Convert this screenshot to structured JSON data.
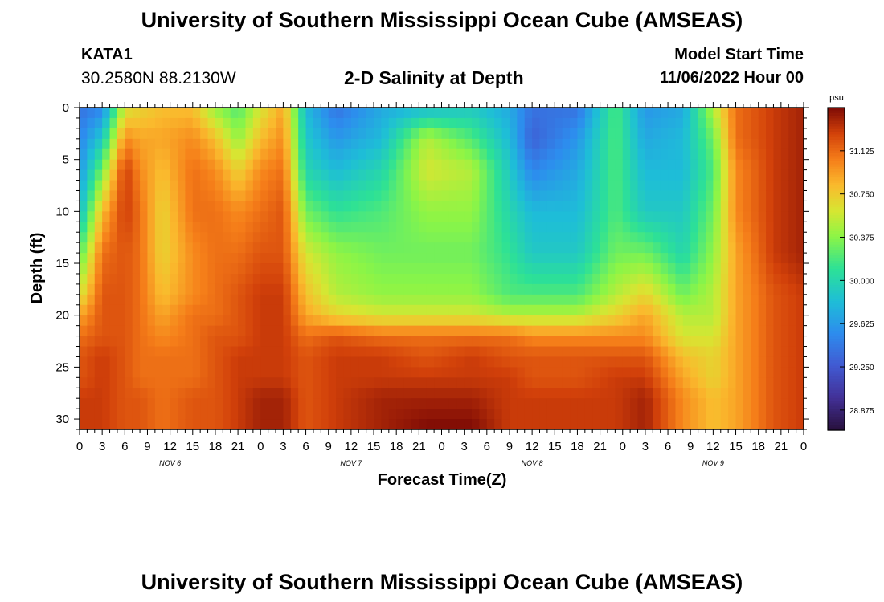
{
  "header": {
    "title": "University of Southern Mississippi Ocean Cube (AMSEAS)",
    "station": "KATA1",
    "coords": "30.2580N  88.2130W",
    "subtitle": "2-D Salinity at Depth",
    "start_label": "Model Start Time",
    "start_value": "11/06/2022 Hour 00"
  },
  "footer": {
    "title": "University of Southern Mississippi Ocean Cube (AMSEAS)"
  },
  "chart_data": {
    "type": "heatmap",
    "title": "2-D Salinity at Depth",
    "xlabel": "Forecast Time(Z)",
    "ylabel": "Depth (ft)",
    "x_hours_range": [
      0,
      96
    ],
    "y_range": [
      0,
      31
    ],
    "x_tick_labels": [
      "0",
      "3",
      "6",
      "9",
      "12",
      "15",
      "18",
      "21",
      "0",
      "3",
      "6",
      "9",
      "12",
      "15",
      "18",
      "21",
      "0",
      "3",
      "6",
      "9",
      "12",
      "15",
      "18",
      "21",
      "0",
      "3",
      "6",
      "9",
      "12",
      "15",
      "18",
      "21",
      "0"
    ],
    "day_labels": [
      {
        "label": "NOV  6",
        "hour": 12
      },
      {
        "label": "NOV  7",
        "hour": 36
      },
      {
        "label": "NOV  8",
        "hour": 60
      },
      {
        "label": "NOV  9",
        "hour": 84
      }
    ],
    "y_ticks": [
      0,
      5,
      10,
      15,
      20,
      25,
      30
    ],
    "colorbar": {
      "unit": "psu",
      "range": [
        28.7,
        31.5
      ],
      "ticks": [
        "31.125",
        "30.750",
        "30.375",
        "30.000",
        "29.625",
        "29.250",
        "28.875"
      ]
    },
    "depth_levels_ft": [
      0,
      3,
      6,
      10,
      14,
      18,
      20,
      22,
      24,
      26,
      28,
      31
    ],
    "profiles": [
      {
        "hour": 0,
        "values": [
          29.4,
          29.5,
          29.6,
          29.8,
          30.2,
          30.6,
          30.9,
          31.1,
          31.2,
          31.2,
          31.3,
          31.3
        ]
      },
      {
        "hour": 3,
        "values": [
          29.5,
          29.9,
          30.3,
          30.8,
          31.1,
          31.2,
          31.2,
          31.2,
          31.3,
          31.3,
          31.3,
          31.3
        ]
      },
      {
        "hour": 6,
        "values": [
          30.6,
          31.0,
          31.3,
          31.3,
          31.2,
          31.2,
          31.2,
          31.2,
          31.2,
          31.2,
          31.2,
          31.2
        ]
      },
      {
        "hour": 8,
        "values": [
          30.7,
          30.9,
          31.0,
          31.1,
          31.1,
          31.1,
          31.1,
          31.1,
          31.1,
          31.1,
          31.2,
          31.2
        ]
      },
      {
        "hour": 11,
        "values": [
          30.8,
          30.9,
          30.8,
          30.7,
          30.7,
          30.8,
          30.9,
          31.0,
          31.1,
          31.1,
          31.1,
          31.1
        ]
      },
      {
        "hour": 15,
        "values": [
          30.8,
          31.0,
          31.1,
          31.1,
          31.0,
          31.0,
          31.1,
          31.1,
          31.1,
          31.1,
          31.2,
          31.2
        ]
      },
      {
        "hour": 18,
        "values": [
          30.4,
          30.8,
          31.0,
          31.1,
          31.1,
          31.1,
          31.1,
          31.2,
          31.2,
          31.2,
          31.2,
          31.2
        ]
      },
      {
        "hour": 21,
        "values": [
          30.2,
          30.4,
          30.7,
          31.0,
          31.1,
          31.2,
          31.2,
          31.2,
          31.3,
          31.3,
          31.3,
          31.3
        ]
      },
      {
        "hour": 24,
        "values": [
          30.6,
          30.8,
          31.0,
          31.1,
          31.2,
          31.3,
          31.3,
          31.3,
          31.3,
          31.3,
          31.4,
          31.4
        ]
      },
      {
        "hour": 27,
        "values": [
          30.9,
          31.0,
          31.1,
          31.2,
          31.2,
          31.3,
          31.3,
          31.3,
          31.3,
          31.3,
          31.4,
          31.4
        ]
      },
      {
        "hour": 30,
        "values": [
          29.8,
          29.9,
          30.0,
          30.3,
          30.6,
          30.8,
          30.9,
          31.1,
          31.2,
          31.2,
          31.2,
          31.2
        ]
      },
      {
        "hour": 34,
        "values": [
          29.4,
          29.6,
          29.8,
          30.1,
          30.4,
          30.5,
          30.7,
          31.2,
          31.3,
          31.3,
          31.3,
          31.3
        ]
      },
      {
        "hour": 40,
        "values": [
          29.7,
          29.8,
          30.0,
          30.2,
          30.3,
          30.4,
          30.6,
          31.1,
          31.3,
          31.3,
          31.4,
          31.4
        ]
      },
      {
        "hour": 46,
        "values": [
          29.8,
          30.5,
          30.6,
          30.4,
          30.3,
          30.4,
          30.6,
          31.1,
          31.2,
          31.3,
          31.4,
          31.5
        ]
      },
      {
        "hour": 52,
        "values": [
          29.9,
          30.2,
          30.5,
          30.4,
          30.3,
          30.4,
          30.6,
          31.1,
          31.3,
          31.3,
          31.4,
          31.5
        ]
      },
      {
        "hour": 57,
        "values": [
          29.7,
          29.8,
          29.9,
          30.0,
          30.1,
          30.2,
          30.5,
          31.1,
          31.2,
          31.3,
          31.3,
          31.3
        ]
      },
      {
        "hour": 60,
        "values": [
          29.4,
          29.3,
          29.5,
          29.8,
          29.9,
          30.2,
          30.5,
          31.0,
          31.2,
          31.2,
          31.3,
          31.3
        ]
      },
      {
        "hour": 66,
        "values": [
          29.4,
          29.6,
          29.7,
          29.8,
          29.9,
          30.2,
          30.5,
          31.0,
          31.2,
          31.2,
          31.3,
          31.3
        ]
      },
      {
        "hour": 71,
        "values": [
          30.2,
          30.2,
          30.2,
          30.2,
          30.3,
          30.5,
          30.7,
          31.0,
          31.2,
          31.3,
          31.3,
          31.3
        ]
      },
      {
        "hour": 75,
        "values": [
          29.6,
          29.7,
          29.8,
          29.9,
          30.3,
          30.7,
          30.9,
          31.0,
          31.2,
          31.3,
          31.4,
          31.4
        ]
      },
      {
        "hour": 80,
        "values": [
          29.7,
          29.8,
          29.8,
          29.9,
          30.0,
          30.3,
          30.5,
          30.6,
          30.8,
          30.9,
          31.0,
          31.0
        ]
      },
      {
        "hour": 84,
        "values": [
          30.5,
          30.3,
          30.2,
          30.3,
          30.4,
          30.5,
          30.5,
          30.6,
          30.7,
          30.7,
          30.8,
          30.8
        ]
      },
      {
        "hour": 87,
        "values": [
          31.1,
          31.1,
          31.0,
          31.0,
          30.9,
          30.9,
          30.9,
          30.9,
          30.9,
          30.9,
          30.9,
          30.9
        ]
      },
      {
        "hour": 92,
        "values": [
          31.3,
          31.3,
          31.3,
          31.3,
          31.3,
          31.2,
          31.2,
          31.2,
          31.2,
          31.2,
          31.2,
          31.2
        ]
      },
      {
        "hour": 96,
        "values": [
          31.4,
          31.4,
          31.4,
          31.4,
          31.4,
          31.3,
          31.3,
          31.3,
          31.3,
          31.3,
          31.3,
          31.3
        ]
      }
    ]
  }
}
